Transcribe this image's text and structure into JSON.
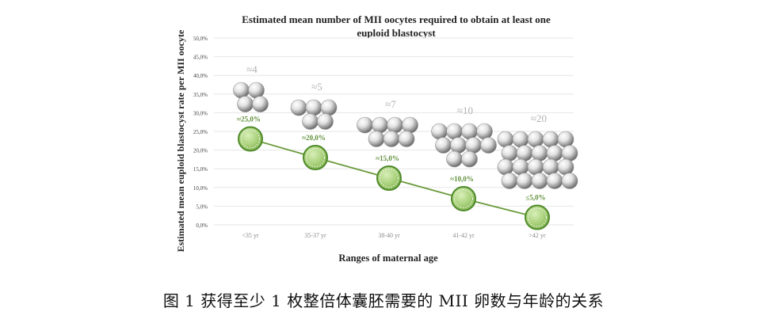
{
  "chart_data": {
    "type": "line",
    "title": "Estimated mean number of MII oocytes required to obtain at least one euploid blastocyst",
    "title_line1": "Estimated mean number of MII oocytes required to obtain at least one",
    "title_line2": "euploid blastocyst",
    "xlabel": "Ranges of maternal age",
    "ylabel": "Estimated mean euploid blastocyst rate per MII oocyte",
    "categories": [
      "<35 yr",
      "35-37 yr",
      "38-40 yr",
      "41-42 yr",
      ">42 yr"
    ],
    "series": [
      {
        "values": [
          23.0,
          18.0,
          12.5,
          7.0,
          2.0
        ]
      }
    ],
    "point_labels": [
      "≈25,0%",
      "≈20,0%",
      "≈15,0%",
      "≈10,0%",
      "≤5,0%"
    ],
    "oocyte_labels": [
      "≈4",
      "≈5",
      "≈7",
      "≈10",
      "≈20"
    ],
    "oocyte_counts": [
      4,
      5,
      7,
      10,
      20
    ],
    "yticks": [
      "0,0%",
      "5,0%",
      "10,0%",
      "15,0%",
      "20,0%",
      "25,0%",
      "30,0%",
      "35,0%",
      "40,0%",
      "45,0%",
      "50,0%"
    ],
    "ylim": [
      0,
      50
    ],
    "grid": true,
    "colors": {
      "line": "#6a9a3a",
      "marker_fill": "#a8d07a",
      "marker_edge": "#4f8a2a",
      "label": "#5f8f3a",
      "oocyte_label": "#b0b0b0",
      "grid": "#e6e6e6"
    }
  },
  "caption": "图 1  获得至少 1 枚整倍体囊胚需要的 MII 卵数与年龄的关系"
}
